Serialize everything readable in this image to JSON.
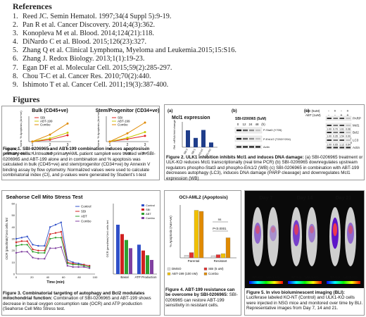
{
  "references": {
    "heading": "References",
    "items": [
      "Reed JC. Semin Hematol. 1997;34(4 Suppl 5):9-19.",
      "Pan R et al. Cancer Discovery. 2014;4(3):362.",
      "Konopleva M et al. Blood. 2014;124(21):118.",
      "DiNardo C et al. Blood. 2015;126(23):327.",
      "Zhang Q et al. Clinical Lymphoma, Myeloma and Leukemia.2015;15:S16.",
      "Zhang J. Redox Biology. 2013;1(1):19-23.",
      "Egan DF et al. Molecular Cell. 2015;59(2):285-297.",
      "Chou T-C et al. Cancer Res. 2010;70(2):440.",
      "Ishimoto T et al. Cancer Cell. 2011;19(3):387-400."
    ]
  },
  "figures_heading": "Figures",
  "fig1": {
    "title_left": "Bulk (CD45+ve)",
    "title_right": "Stem/Progenitor (CD34+ve)",
    "ylabel": "Norm. % Apoptosis (Ann+ve)",
    "legend": [
      "SBI",
      "ABT-199",
      "Combo"
    ],
    "row_sbi": [
      "SBI (uM)",
      "0",
      "2.5",
      "5"
    ],
    "row_abt": [
      "ABT-199 (uM)",
      "0",
      "0.25",
      "0.5"
    ],
    "x_ticks": [
      "1",
      "2",
      "3"
    ],
    "caption_bold": "Figure 1. SBI-0206965 and ABT-199 combination induces apoptosis in primary cells:",
    "caption_rest": " Untreated primary AML patient samples were treated with SBI-0206965 and ABT-199 alone and in combination and % apoptosis was calculated in bulk (CD45+ve) and stem/progenitor (CD34+ve) by Annexin V binding assay by flow cytometry. Normalized values were used to calculate combinatorial index (CI), and p-values were generated by Student's t-test"
  },
  "fig2": {
    "label_a": "(a)",
    "label_b": "(b)",
    "label_c": "(c)",
    "mcl1_title": "Mcl1 expression",
    "ylabel": "Rel. mRNA fold change",
    "bar_labels": [
      "SBI 0",
      "SBI 5",
      "KO-NT",
      "ULK1-KO"
    ],
    "blot_b_title": "SBI-0206965 (5uM)",
    "blot_b_hours": [
      "0",
      "12",
      "24",
      "48",
      "(h)"
    ],
    "blot_b_labels": [
      "P-Stat3 (Y705)",
      "P-Erk1/2 (T202/Y204)",
      "Actin"
    ],
    "blot_c_row1": [
      "SBI (5uM)",
      "-",
      "+",
      "-",
      "+"
    ],
    "blot_c_row2": [
      "ABT (1uM)",
      "-",
      "-",
      "+",
      "+"
    ],
    "blot_c_labels": [
      "PARP",
      "Mcl1",
      "Bcl2",
      "LC3",
      "Actin"
    ],
    "mcl1_vals": [
      "1.00",
      "0.70",
      "1.61",
      "0.08"
    ],
    "bcl2_vals": [
      "1.00",
      "0.35",
      "1.54",
      "0.09"
    ],
    "lc3_vals": [
      "1.00",
      "0.65",
      "1.12",
      "0.64"
    ],
    "lc3_forms": [
      "I",
      "II"
    ],
    "caption_bold": "Figure 2. ULK1 inhibition inhibits Mcl1 and induces DNA damage:",
    "caption_rest": " (a) SBI-0206965 treatment or ULK-KO reduces Mcl1 transcriptionally (real time PCR) (b) SBI-0206965 downregulates upstream regulators phospho-Stat3 and phospho-Erk1/2 (WB) (c) SBI-0206965 in combination with ABT-199 decreases autophagy (LC3), induces DNA damage (PARP cleavage) and downregulates Mcl1 expression (WB)"
  },
  "fig3": {
    "title": "Seahorse Cell Mito Stress Test",
    "ylabel": "OCR (pmol/min)*1e4 cells /ml",
    "xlabel": "Time (min)",
    "legend": [
      "Control",
      "SBI",
      "ABT",
      "Combo"
    ],
    "y_ticks": [
      "0",
      "10",
      "20",
      "30",
      "40",
      "50",
      "60"
    ],
    "x_ticks": [
      "0",
      "20",
      "40",
      "60",
      "80",
      "100"
    ],
    "bar_ylabel": "OCR (pmol/min)*1e4 cells /ml",
    "bar_groups": [
      "Basal",
      "ATP Production"
    ],
    "bar_legend": [
      "Control",
      "SBI",
      "ABT",
      "Combo"
    ],
    "caption_bold": "Figure 3. Combinatorial targeting of autophagy and Bcl2 modulates mitochondrial function:",
    "caption_rest": " Combination of SBI-0206965 and ABT-199 shows decrease in basal oxygen consumption rate (OCR) and ATP production (Seahorse Cell Mito Stress test."
  },
  "fig4": {
    "title": "OCI-AML2 (Apoptosis)",
    "ylabel": "% Apoptosis (Ann+ve)",
    "groups": [
      "Parental",
      "Resistant"
    ],
    "legend": [
      "DMSO",
      "SBI (5 uM)",
      "ABT-199 (100 nM)",
      "Combo"
    ],
    "annot_ns": "ns",
    "annot_p": "P<0.0001",
    "caption_bold": "Figure 4. ABT-199 resistance can be overcome by SBI-0206965:",
    "caption_rest": " SBI-0206965 can restore ABT-199 sensitivity in resistant cells."
  },
  "fig5": {
    "days": [
      "Day 7",
      "Day 14",
      "Day 21"
    ],
    "mouse_labels": [
      "NT-KO",
      "ULK1-KO"
    ],
    "caption_bold": "Figure 5. In vivo bioluminescent imaging (BLI):",
    "caption_rest": " Luciferase labeled KO-NT (Control) and ULK1-KO cells were injected in NSG mice and monitored over time by BLI. Representative images from Day 7, 14 and 21."
  },
  "chart_data": [
    {
      "type": "line",
      "title": "Bulk (CD45+ve)",
      "ylabel": "Norm. % Apoptosis (Ann+ve)",
      "x": [
        1,
        2,
        3
      ],
      "ylim": [
        0,
        80
      ],
      "series": [
        {
          "name": "SBI",
          "values": [
            0,
            6,
            20
          ],
          "color": "#e02020"
        },
        {
          "name": "ABT-199",
          "values": [
            0,
            10,
            28
          ],
          "color": "#c8c800"
        },
        {
          "name": "Combo",
          "values": [
            0,
            22,
            57
          ],
          "color": "#e08a00"
        }
      ]
    },
    {
      "type": "line",
      "title": "Stem/Progenitor (CD34+ve)",
      "ylabel": "Norm. % Apoptosis (Ann+ve)",
      "x": [
        1,
        2,
        3
      ],
      "ylim": [
        0,
        80
      ],
      "series": [
        {
          "name": "SBI",
          "values": [
            0,
            8,
            18
          ],
          "color": "#e02020"
        },
        {
          "name": "ABT-199",
          "values": [
            0,
            12,
            30
          ],
          "color": "#c8c800"
        },
        {
          "name": "Combo",
          "values": [
            0,
            26,
            60
          ],
          "color": "#e08a00"
        }
      ]
    },
    {
      "type": "bar",
      "title": "Mcl1 expression",
      "ylabel": "Rel. mRNA fold change",
      "categories": [
        "SBI 0",
        "SBI 5",
        "KO-NT",
        "ULK1-KO"
      ],
      "values": [
        1.0,
        0.55,
        1.02,
        0.28
      ],
      "ylim": [
        0,
        1.5
      ]
    },
    {
      "type": "line",
      "title": "Seahorse Cell Mito Stress Test",
      "ylabel": "OCR (pmol/min)*1e4 cells /ml",
      "xlabel": "Time (min)",
      "x": [
        0,
        7,
        14,
        21,
        28,
        36,
        43,
        50,
        57,
        65,
        72,
        79,
        86,
        93
      ],
      "ylim": [
        0,
        60
      ],
      "series": [
        {
          "name": "Control",
          "values": [
            30,
            31,
            32,
            25,
            24,
            24,
            40,
            42,
            44,
            12,
            10,
            9,
            8,
            7
          ],
          "color": "#3050c8"
        },
        {
          "name": "SBI",
          "values": [
            27,
            28,
            28,
            21,
            20,
            20,
            34,
            35,
            36,
            10,
            9,
            8,
            8,
            7
          ],
          "color": "#d02020"
        },
        {
          "name": "ABT",
          "values": [
            24,
            25,
            25,
            19,
            18,
            18,
            30,
            31,
            31,
            9,
            8,
            8,
            7,
            6
          ],
          "color": "#30a030"
        },
        {
          "name": "Combo",
          "values": [
            18,
            19,
            19,
            14,
            13,
            13,
            22,
            22,
            23,
            7,
            6,
            6,
            6,
            5
          ],
          "color": "#8040a0"
        }
      ]
    },
    {
      "type": "bar",
      "ylabel": "OCR (pmol/min)*1e4 cells /ml",
      "categories": [
        "Basal",
        "ATP Production"
      ],
      "series": [
        {
          "name": "Control",
          "values": [
            42,
            25
          ],
          "color": "#3050c8"
        },
        {
          "name": "SBI",
          "values": [
            34,
            20
          ],
          "color": "#d02020"
        },
        {
          "name": "ABT",
          "values": [
            29,
            16
          ],
          "color": "#30a030"
        },
        {
          "name": "Combo",
          "values": [
            22,
            12
          ],
          "color": "#8040a0"
        }
      ],
      "ylim": [
        0,
        60
      ]
    },
    {
      "type": "bar",
      "title": "OCI-AML2 (Apoptosis)",
      "ylabel": "% Apoptosis (Ann+ve)",
      "categories": [
        "Parental",
        "Resistant"
      ],
      "series": [
        {
          "name": "DMSO",
          "values": [
            5,
            4
          ],
          "color": "#dddddd"
        },
        {
          "name": "SBI (5 uM)",
          "values": [
            10,
            6
          ],
          "color": "#e03030"
        },
        {
          "name": "ABT-199 (100 nM)",
          "values": [
            90,
            8
          ],
          "color": "#f0c000"
        },
        {
          "name": "Combo",
          "values": [
            88,
            38
          ],
          "color": "#e08a00"
        }
      ],
      "ylim": [
        0,
        100
      ]
    }
  ]
}
